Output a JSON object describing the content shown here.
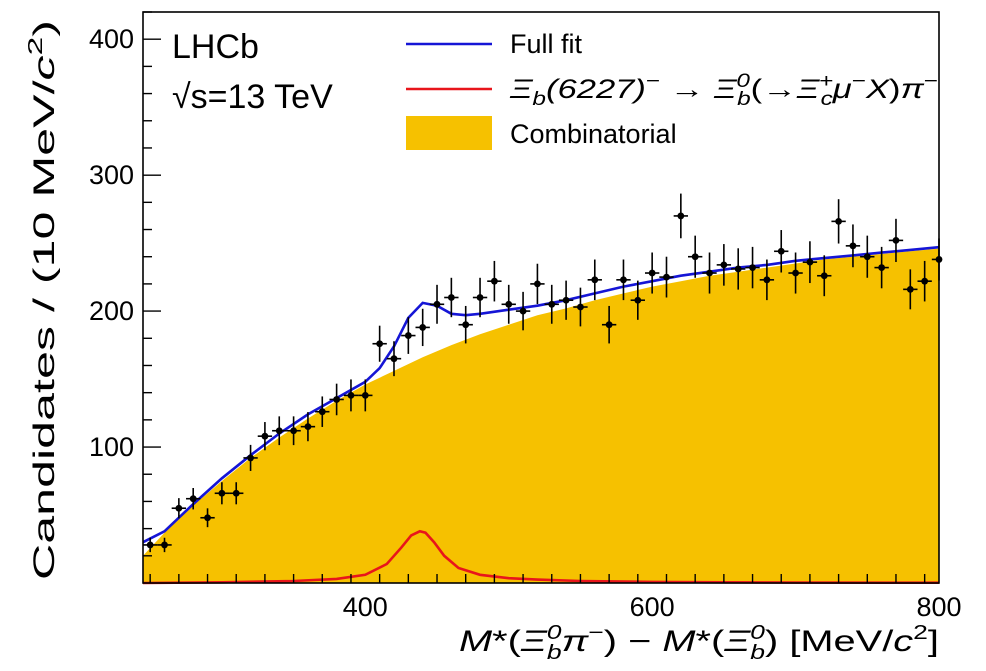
{
  "chart_data": {
    "type": "scatter",
    "xlim": [
      245,
      800
    ],
    "ylim": [
      0,
      420
    ],
    "x_ticks": [
      400,
      600,
      800
    ],
    "y_ticks": [
      100,
      200,
      300,
      400
    ],
    "xlabel": "M*(Ξb0π−) − M*(Ξb0) [MeV/c²]",
    "ylabel": "Candidates / (10 MeV/c²)",
    "grid": false,
    "legend_position": "top-right",
    "annotations": [
      "LHCb",
      "√s=13 TeV"
    ],
    "series": [
      {
        "name": "Data",
        "kind": "points-with-errors",
        "bin_half_width": 5,
        "points": [
          {
            "x": 250,
            "y": 28
          },
          {
            "x": 260,
            "y": 28
          },
          {
            "x": 270,
            "y": 55
          },
          {
            "x": 280,
            "y": 62
          },
          {
            "x": 290,
            "y": 48
          },
          {
            "x": 300,
            "y": 66
          },
          {
            "x": 310,
            "y": 66
          },
          {
            "x": 320,
            "y": 92
          },
          {
            "x": 330,
            "y": 108
          },
          {
            "x": 340,
            "y": 112
          },
          {
            "x": 350,
            "y": 112
          },
          {
            "x": 360,
            "y": 115
          },
          {
            "x": 370,
            "y": 126
          },
          {
            "x": 380,
            "y": 135
          },
          {
            "x": 390,
            "y": 138
          },
          {
            "x": 400,
            "y": 138
          },
          {
            "x": 410,
            "y": 176
          },
          {
            "x": 420,
            "y": 165
          },
          {
            "x": 430,
            "y": 182
          },
          {
            "x": 440,
            "y": 188
          },
          {
            "x": 450,
            "y": 205
          },
          {
            "x": 460,
            "y": 210
          },
          {
            "x": 470,
            "y": 190
          },
          {
            "x": 480,
            "y": 210
          },
          {
            "x": 490,
            "y": 222
          },
          {
            "x": 500,
            "y": 205
          },
          {
            "x": 510,
            "y": 200
          },
          {
            "x": 520,
            "y": 220
          },
          {
            "x": 530,
            "y": 205
          },
          {
            "x": 540,
            "y": 208
          },
          {
            "x": 550,
            "y": 203
          },
          {
            "x": 560,
            "y": 223
          },
          {
            "x": 570,
            "y": 190
          },
          {
            "x": 580,
            "y": 223
          },
          {
            "x": 590,
            "y": 208
          },
          {
            "x": 600,
            "y": 228
          },
          {
            "x": 610,
            "y": 225
          },
          {
            "x": 620,
            "y": 270
          },
          {
            "x": 630,
            "y": 240
          },
          {
            "x": 640,
            "y": 228
          },
          {
            "x": 650,
            "y": 234
          },
          {
            "x": 660,
            "y": 231
          },
          {
            "x": 670,
            "y": 232
          },
          {
            "x": 680,
            "y": 223
          },
          {
            "x": 690,
            "y": 244
          },
          {
            "x": 700,
            "y": 228
          },
          {
            "x": 710,
            "y": 236
          },
          {
            "x": 720,
            "y": 226
          },
          {
            "x": 730,
            "y": 266
          },
          {
            "x": 740,
            "y": 248
          },
          {
            "x": 750,
            "y": 240
          },
          {
            "x": 760,
            "y": 232
          },
          {
            "x": 770,
            "y": 252
          },
          {
            "x": 780,
            "y": 216
          },
          {
            "x": 790,
            "y": 222
          },
          {
            "x": 800,
            "y": 238
          }
        ]
      },
      {
        "name": "Full fit",
        "kind": "line",
        "color": "#1515d6",
        "x": [
          245,
          260,
          280,
          300,
          320,
          340,
          360,
          380,
          400,
          410,
          420,
          430,
          440,
          450,
          460,
          470,
          480,
          500,
          520,
          540,
          560,
          580,
          600,
          620,
          640,
          660,
          680,
          700,
          720,
          740,
          760,
          780,
          800
        ],
        "y": [
          30,
          38,
          58,
          77,
          94,
          110,
          124,
          136,
          148,
          158,
          174,
          195,
          206,
          204,
          198,
          197,
          198,
          201,
          204,
          208,
          213,
          218,
          222,
          226,
          229,
          232,
          234,
          237,
          239,
          241,
          243,
          245,
          247
        ]
      },
      {
        "name": "Ξb(6227)− → Ξb0(→Ξc+μ−X)π−",
        "kind": "line",
        "color": "#e8151b",
        "x": [
          245,
          300,
          350,
          380,
          400,
          415,
          425,
          432,
          438,
          442,
          448,
          455,
          465,
          480,
          500,
          520,
          550,
          600,
          650,
          700,
          800
        ],
        "y": [
          0,
          0.5,
          1.5,
          3,
          6,
          14,
          26,
          35,
          38,
          37,
          30,
          20,
          11,
          6,
          3.5,
          2.5,
          1.5,
          0.8,
          0.5,
          0.3,
          0.2
        ]
      },
      {
        "name": "Combinatorial",
        "kind": "area",
        "color": "#f6c100",
        "x": [
          245,
          260,
          280,
          300,
          320,
          340,
          360,
          380,
          400,
          420,
          440,
          460,
          480,
          500,
          520,
          540,
          560,
          580,
          600,
          620,
          640,
          660,
          680,
          700,
          720,
          740,
          760,
          780,
          800
        ],
        "y": [
          20,
          37,
          57,
          75,
          92,
          107,
          121,
          134,
          146,
          156,
          166,
          175,
          183,
          190,
          197,
          202,
          208,
          213,
          218,
          222,
          226,
          229,
          232,
          235,
          238,
          240,
          242,
          244,
          246
        ]
      }
    ],
    "legend": [
      {
        "label": "Full fit",
        "swatch": "blue-line"
      },
      {
        "label": "Ξb(6227)− → Ξb0(→Ξc+μ−X)π−",
        "swatch": "red-line"
      },
      {
        "label": "Combinatorial",
        "swatch": "gold-box"
      }
    ]
  }
}
